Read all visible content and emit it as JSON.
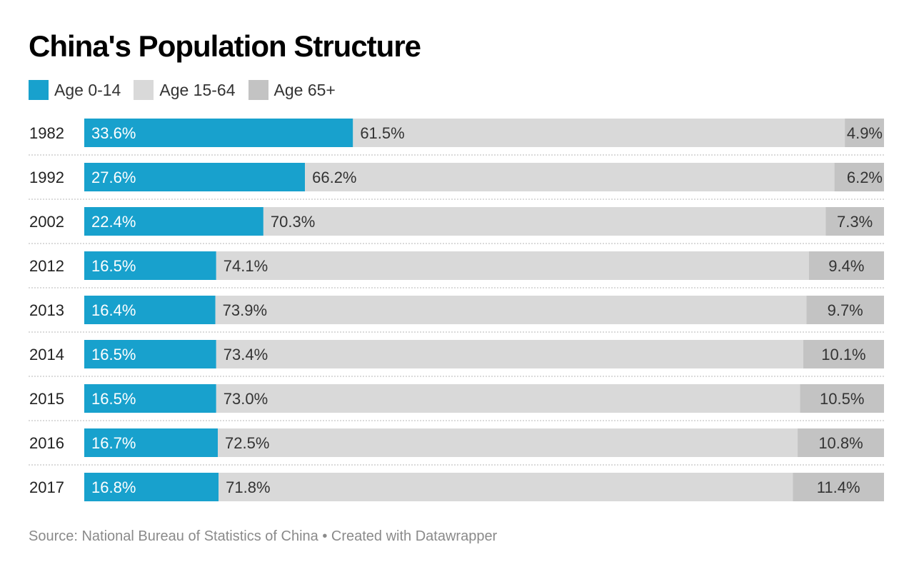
{
  "chart_data": {
    "type": "bar",
    "stacked": true,
    "orientation": "horizontal",
    "title": "China's Population Structure",
    "categories": [
      "1982",
      "1992",
      "2002",
      "2012",
      "2013",
      "2014",
      "2015",
      "2016",
      "2017"
    ],
    "series": [
      {
        "name": "Age 0-14",
        "color": "#18a1cd",
        "label_color": "#ffffff",
        "values": [
          33.6,
          27.6,
          22.4,
          16.5,
          16.4,
          16.5,
          16.5,
          16.7,
          16.8
        ],
        "labels": [
          "33.6%",
          "27.6%",
          "22.4%",
          "16.5%",
          "16.4%",
          "16.5%",
          "16.5%",
          "16.7%",
          "16.8%"
        ]
      },
      {
        "name": "Age 15-64",
        "color": "#d9d9d9",
        "label_color": "#333333",
        "values": [
          61.5,
          66.2,
          70.3,
          74.1,
          73.9,
          73.4,
          73.0,
          72.5,
          71.8
        ],
        "labels": [
          "61.5%",
          "66.2%",
          "70.3%",
          "74.1%",
          "73.9%",
          "73.4%",
          "73.0%",
          "72.5%",
          "71.8%"
        ]
      },
      {
        "name": "Age 65+",
        "color": "#c3c3c3",
        "label_color": "#333333",
        "values": [
          4.9,
          6.2,
          7.3,
          9.4,
          9.7,
          10.1,
          10.5,
          10.8,
          11.4
        ],
        "labels": [
          "4.9%",
          "6.2%",
          "7.3%",
          "9.4%",
          "9.7%",
          "10.1%",
          "10.5%",
          "10.8%",
          "11.4%"
        ]
      }
    ],
    "legend_position": "top-left",
    "source": "Source: National Bureau of Statistics of China • Created with Datawrapper"
  }
}
